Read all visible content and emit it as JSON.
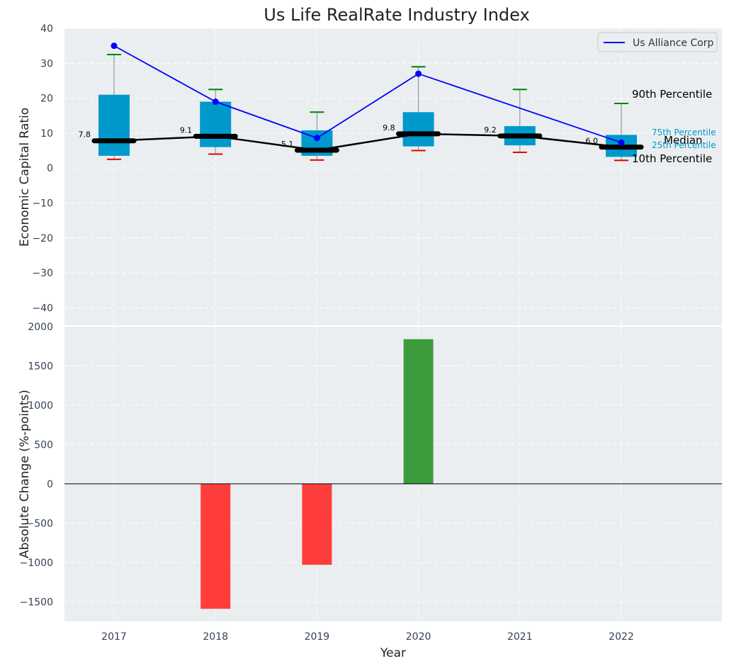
{
  "chart_data": [
    {
      "type": "box",
      "title": "Us Life RealRate Industry Index",
      "ylabel": "Economic Capital Ratio",
      "ylim": [
        -45,
        40
      ],
      "yticks": [
        40,
        30,
        20,
        10,
        0,
        -10,
        -20,
        -30,
        -40
      ],
      "categories": [
        "2017",
        "2018",
        "2019",
        "2020",
        "2021",
        "2022"
      ],
      "percentiles": {
        "p10": [
          2.5,
          4.0,
          2.3,
          5.0,
          4.5,
          2.2
        ],
        "p25": [
          3.5,
          6.0,
          3.5,
          6.2,
          6.5,
          3.2
        ],
        "median": [
          7.8,
          9.1,
          5.1,
          9.8,
          9.2,
          6.0
        ],
        "p75": [
          21.0,
          19.0,
          10.8,
          16.0,
          12.0,
          9.5
        ],
        "p90": [
          32.5,
          22.5,
          16.0,
          29.0,
          22.5,
          18.5
        ]
      },
      "median_labels": [
        "7.8",
        "9.1",
        "5.1",
        "9.8",
        "9.2",
        "6.0"
      ],
      "series": [
        {
          "name": "Us Alliance Corp",
          "values": [
            35.0,
            19.0,
            8.6,
            27.0,
            null,
            7.3
          ],
          "color": "#0000ff"
        }
      ],
      "legend": {
        "position": "top-right",
        "entries": [
          "Us Alliance Corp"
        ]
      },
      "annotations": {
        "p90": "90th Percentile",
        "p75": "75th Percentile",
        "median": "Median",
        "p25": "25th Percentile",
        "p10": "10th Percentile"
      },
      "colors": {
        "box": "#0099cc",
        "p90_cap": "#008000",
        "p10_cap": "#e60000",
        "median_line": "#000000"
      }
    },
    {
      "type": "bar",
      "ylabel": "Absolute Change (%-points)",
      "xlabel": "Year",
      "ylim": [
        -1750,
        2000
      ],
      "yticks": [
        2000,
        1500,
        1000,
        500,
        0,
        -500,
        -1000,
        -1500
      ],
      "categories": [
        "2017",
        "2018",
        "2019",
        "2020",
        "2021",
        "2022"
      ],
      "values": [
        0,
        -1590,
        -1030,
        1840,
        0,
        0
      ],
      "colors": {
        "positive": "#3c9c3c",
        "negative": "#ff3d3d"
      }
    }
  ]
}
